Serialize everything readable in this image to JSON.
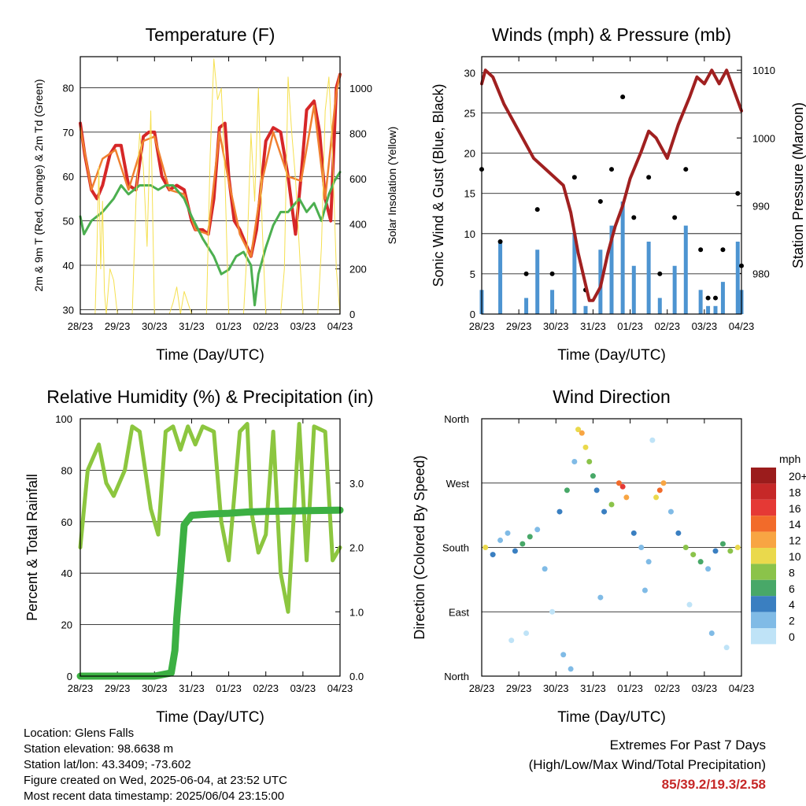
{
  "info": {
    "location": "Location: Glens Falls",
    "elevation": "Station elevation: 98.6638 m",
    "latlon": "Station lat/lon: 43.3409; -73.602",
    "created": "Figure created on Wed, 2025-06-04, at 23:52 UTC",
    "recent": "Most recent data timestamp: 2025/06/04 23:15:00"
  },
  "extremes": {
    "title": "Extremes For Past 7 Days",
    "subtitle": "(High/Low/Max Wind/Total Precipitation)",
    "values": "85/39.2/19.3/2.58"
  },
  "chart_data": [
    {
      "type": "line",
      "title": "Temperature (F)",
      "xlabel": "Time (Day/UTC)",
      "ylabel": "2m & 9m T (Red, Orange) & 2m Td (Green)",
      "y2label": "Solar Insolation (Yellow)",
      "x_ticks": [
        "28/23",
        "29/23",
        "30/23",
        "31/23",
        "01/23",
        "02/23",
        "03/23",
        "04/23"
      ],
      "ylim": [
        29,
        87
      ],
      "y_ticks": [
        30,
        40,
        50,
        60,
        70,
        80
      ],
      "y2lim": [
        0,
        1140
      ],
      "y2_ticks": [
        0,
        200,
        400,
        600,
        800,
        1000
      ],
      "grid": true,
      "colors": {
        "t2m": "#d62728",
        "t9m": "#f08030",
        "td": "#4caf50",
        "solar": "#f5e050"
      },
      "series": [
        {
          "key": "t2m",
          "x": [
            0,
            0.12,
            0.3,
            0.45,
            0.6,
            0.8,
            0.95,
            1.1,
            1.3,
            1.5,
            1.7,
            1.85,
            2.0,
            2.2,
            2.4,
            2.6,
            2.8,
            3.0,
            3.1,
            3.3,
            3.45,
            3.6,
            3.75,
            3.9,
            4.0,
            4.15,
            4.3,
            4.45,
            4.6,
            4.75,
            4.9,
            5.0,
            5.2,
            5.4,
            5.6,
            5.8,
            5.95,
            6.1,
            6.3,
            6.45,
            6.6,
            6.75,
            6.9,
            7.0
          ],
          "y": [
            72,
            65,
            57,
            55,
            58,
            65,
            67,
            67,
            58,
            57,
            69,
            70,
            70,
            60,
            57,
            58,
            57,
            50,
            48,
            48,
            47,
            55,
            71,
            72,
            60,
            50,
            48,
            45,
            42,
            48,
            60,
            68,
            71,
            70,
            60,
            47,
            60,
            75,
            77,
            70,
            55,
            50,
            80,
            83
          ]
        },
        {
          "key": "t9m",
          "x": [
            0,
            0.3,
            0.6,
            0.95,
            1.3,
            1.7,
            2.0,
            2.4,
            2.8,
            3.1,
            3.45,
            3.75,
            4.0,
            4.3,
            4.6,
            4.9,
            5.2,
            5.6,
            5.95,
            6.3,
            6.6,
            6.9,
            7.0
          ],
          "y": [
            71,
            57,
            64,
            66,
            57,
            68,
            69,
            57,
            56,
            48,
            47,
            70,
            59,
            47,
            42,
            59,
            70,
            60,
            59,
            76,
            55,
            79,
            83
          ]
        },
        {
          "key": "td",
          "x": [
            0,
            0.1,
            0.3,
            0.6,
            0.9,
            1.1,
            1.3,
            1.6,
            1.9,
            2.1,
            2.3,
            2.5,
            2.8,
            3.0,
            3.3,
            3.6,
            3.8,
            4.0,
            4.2,
            4.4,
            4.6,
            4.7,
            4.8,
            5.0,
            5.2,
            5.4,
            5.6,
            5.9,
            6.1,
            6.3,
            6.5,
            6.7,
            6.85,
            7.0
          ],
          "y": [
            51,
            47,
            50,
            52,
            55,
            58,
            56,
            58,
            58,
            57,
            58,
            58,
            55,
            51,
            46,
            42,
            38,
            39,
            42,
            43,
            40,
            31,
            38,
            44,
            49,
            52,
            52,
            55,
            52,
            54,
            50,
            56,
            59,
            61
          ]
        },
        {
          "key": "solar",
          "x": [
            0.4,
            0.45,
            0.5,
            0.55,
            0.6,
            0.65,
            0.7,
            0.8,
            0.9,
            1.0,
            1.4,
            1.5,
            1.6,
            1.7,
            1.8,
            1.9,
            2.0,
            2.4,
            2.5,
            2.6,
            2.7,
            2.8,
            2.9,
            3.0,
            3.4,
            3.5,
            3.6,
            3.7,
            3.8,
            3.9,
            4.0,
            4.4,
            4.5,
            4.6,
            4.7,
            4.8,
            4.9,
            5.0,
            5.4,
            5.5,
            5.6,
            5.7,
            5.8,
            5.9,
            6.0,
            6.4,
            6.5,
            6.6,
            6.7,
            6.8,
            6.9,
            7.0
          ],
          "y": [
            0,
            300,
            650,
            200,
            500,
            100,
            0,
            200,
            150,
            0,
            0,
            500,
            800,
            650,
            300,
            900,
            0,
            0,
            50,
            120,
            0,
            100,
            50,
            0,
            0,
            700,
            1130,
            950,
            1000,
            600,
            0,
            0,
            300,
            800,
            500,
            1000,
            400,
            0,
            0,
            200,
            1050,
            800,
            600,
            300,
            0,
            0,
            300,
            900,
            1050,
            700,
            200,
            0
          ]
        }
      ]
    },
    {
      "type": "scatter",
      "title": "Winds (mph) & Pressure (mb)",
      "xlabel": "Time (Day/UTC)",
      "ylabel": "Sonic Wind & Gust (Blue, Black)",
      "y2label": "Station Pressure (Maroon)",
      "x_ticks": [
        "28/23",
        "29/23",
        "30/23",
        "31/23",
        "01/23",
        "02/23",
        "03/23",
        "04/23"
      ],
      "ylim": [
        0,
        32
      ],
      "y_ticks": [
        0,
        5,
        10,
        15,
        20,
        25,
        30
      ],
      "y2lim": [
        974,
        1012
      ],
      "y2_ticks": [
        980,
        990,
        1000,
        1010
      ],
      "grid": true,
      "colors": {
        "wind": "#4d94d1",
        "gust": "#000000",
        "pressure": "#a02020"
      },
      "series": [
        {
          "key": "wind",
          "x": [
            0,
            0.5,
            1.2,
            1.5,
            1.9,
            2.5,
            2.8,
            3.2,
            3.5,
            3.8,
            4.1,
            4.5,
            4.8,
            5.2,
            5.5,
            5.9,
            6.1,
            6.3,
            6.5,
            6.9,
            7.0
          ],
          "y": [
            3,
            9,
            2,
            8,
            3,
            10,
            1,
            8,
            11,
            14,
            6,
            9,
            2,
            6,
            11,
            3,
            1,
            1,
            4,
            9,
            3
          ]
        },
        {
          "key": "gust",
          "x": [
            0,
            0.5,
            1.2,
            1.5,
            1.9,
            2.5,
            2.8,
            3.2,
            3.5,
            3.8,
            4.1,
            4.5,
            4.8,
            5.2,
            5.5,
            5.9,
            6.1,
            6.3,
            6.5,
            6.9,
            7.0
          ],
          "y": [
            18,
            9,
            5,
            13,
            5,
            17,
            3,
            14,
            18,
            27,
            12,
            17,
            5,
            12,
            18,
            8,
            2,
            2,
            8,
            15,
            6
          ]
        },
        {
          "key": "pressure",
          "x": [
            0,
            0.1,
            0.3,
            0.6,
            1.0,
            1.4,
            1.8,
            2.2,
            2.4,
            2.6,
            2.9,
            3.0,
            3.2,
            3.4,
            3.6,
            3.8,
            4.0,
            4.3,
            4.5,
            4.7,
            5.0,
            5.3,
            5.6,
            5.8,
            6.0,
            6.2,
            6.4,
            6.6,
            6.8,
            7.0
          ],
          "y": [
            1008,
            1010,
            1009,
            1005,
            1001,
            997,
            995,
            993,
            989,
            983,
            976,
            976,
            978,
            983,
            987,
            990,
            994,
            998,
            1001,
            1000,
            997,
            1002,
            1006,
            1009,
            1008,
            1010,
            1008,
            1010,
            1007,
            1004
          ]
        }
      ]
    },
    {
      "type": "line",
      "title": "Relative Humidity (%) & Precipitation (in)",
      "xlabel": "Time (Day/UTC)",
      "ylabel": "Percent & Total Rainfall",
      "x_ticks": [
        "28/23",
        "29/23",
        "30/23",
        "31/23",
        "01/23",
        "02/23",
        "03/23",
        "04/23"
      ],
      "ylim": [
        0,
        100
      ],
      "y_ticks": [
        0,
        20,
        40,
        60,
        80,
        100
      ],
      "y2lim": [
        0,
        4.0
      ],
      "y2_ticks": [
        "0.0",
        "1.0",
        "2.0",
        "3.0"
      ],
      "grid": true,
      "colors": {
        "rh": "#8cc63f",
        "precip": "#3cb043"
      },
      "series": [
        {
          "key": "rh",
          "x": [
            0,
            0.2,
            0.5,
            0.7,
            0.9,
            1.2,
            1.4,
            1.6,
            1.9,
            2.1,
            2.3,
            2.5,
            2.7,
            2.9,
            3.1,
            3.3,
            3.6,
            3.8,
            4.0,
            4.3,
            4.5,
            4.6,
            4.8,
            5.0,
            5.2,
            5.4,
            5.6,
            5.9,
            6.1,
            6.3,
            6.6,
            6.8,
            7.0
          ],
          "y": [
            50,
            80,
            90,
            75,
            70,
            80,
            97,
            95,
            65,
            55,
            95,
            97,
            88,
            97,
            90,
            97,
            95,
            60,
            45,
            95,
            98,
            65,
            48,
            55,
            95,
            40,
            25,
            98,
            45,
            97,
            95,
            45,
            50
          ]
        },
        {
          "key": "precip",
          "x": [
            0,
            1.0,
            2.0,
            2.45,
            2.55,
            2.6,
            2.7,
            2.8,
            3.0,
            3.5,
            4.0,
            4.5,
            5.0,
            6.0,
            7.0
          ],
          "y": [
            0,
            0,
            0,
            0.05,
            0.4,
            0.9,
            1.6,
            2.35,
            2.5,
            2.52,
            2.53,
            2.55,
            2.56,
            2.57,
            2.58
          ]
        }
      ]
    },
    {
      "type": "scatter",
      "title": "Wind Direction",
      "xlabel": "Time (Day/UTC)",
      "ylabel": "Direction (Colored By Speed)",
      "x_ticks": [
        "28/23",
        "29/23",
        "30/23",
        "31/23",
        "01/23",
        "02/23",
        "03/23",
        "04/23"
      ],
      "y_ticks": [
        "North",
        "East",
        "South",
        "West",
        "North"
      ],
      "ylim": [
        0,
        360
      ],
      "grid": true,
      "legend": {
        "title": "mph",
        "labels": [
          "20+",
          "18",
          "16",
          "14",
          "12",
          "10",
          "8",
          "6",
          "4",
          "2",
          "0"
        ],
        "colors": [
          "#9b1c1c",
          "#c62828",
          "#e53935",
          "#f26b2a",
          "#f8a543",
          "#ead94c",
          "#8bc34a",
          "#48a868",
          "#3a7fc1",
          "#80bbe6",
          "#bfe3f7"
        ]
      },
      "points": [
        [
          0.1,
          180,
          10
        ],
        [
          0.3,
          170,
          4
        ],
        [
          0.5,
          190,
          3
        ],
        [
          0.7,
          200,
          2
        ],
        [
          0.9,
          175,
          5
        ],
        [
          1.1,
          185,
          7
        ],
        [
          1.3,
          195,
          6
        ],
        [
          1.5,
          205,
          3
        ],
        [
          1.7,
          150,
          2
        ],
        [
          1.9,
          90,
          1
        ],
        [
          2.1,
          230,
          5
        ],
        [
          2.3,
          260,
          6
        ],
        [
          2.5,
          300,
          2
        ],
        [
          2.6,
          345,
          10
        ],
        [
          2.7,
          340,
          12
        ],
        [
          2.8,
          320,
          11
        ],
        [
          2.9,
          300,
          8
        ],
        [
          3.0,
          280,
          6
        ],
        [
          3.1,
          260,
          5
        ],
        [
          3.3,
          230,
          4
        ],
        [
          3.5,
          240,
          9
        ],
        [
          3.7,
          270,
          14
        ],
        [
          3.8,
          265,
          16
        ],
        [
          3.9,
          250,
          12
        ],
        [
          4.1,
          200,
          4
        ],
        [
          4.3,
          180,
          3
        ],
        [
          4.5,
          160,
          2
        ],
        [
          4.7,
          250,
          10
        ],
        [
          4.8,
          260,
          14
        ],
        [
          4.9,
          270,
          12
        ],
        [
          5.1,
          230,
          3
        ],
        [
          5.3,
          200,
          4
        ],
        [
          5.5,
          180,
          8
        ],
        [
          5.7,
          170,
          9
        ],
        [
          5.9,
          160,
          7
        ],
        [
          6.1,
          150,
          2
        ],
        [
          6.3,
          175,
          4
        ],
        [
          6.5,
          185,
          6
        ],
        [
          6.7,
          175,
          9
        ],
        [
          6.9,
          180,
          10
        ],
        [
          2.2,
          30,
          2
        ],
        [
          2.4,
          10,
          3
        ],
        [
          1.2,
          60,
          1
        ],
        [
          0.8,
          50,
          1
        ],
        [
          3.2,
          110,
          2
        ],
        [
          4.4,
          120,
          3
        ],
        [
          5.6,
          100,
          1
        ],
        [
          6.2,
          60,
          2
        ],
        [
          6.6,
          40,
          1
        ],
        [
          4.6,
          330,
          1
        ]
      ]
    }
  ]
}
